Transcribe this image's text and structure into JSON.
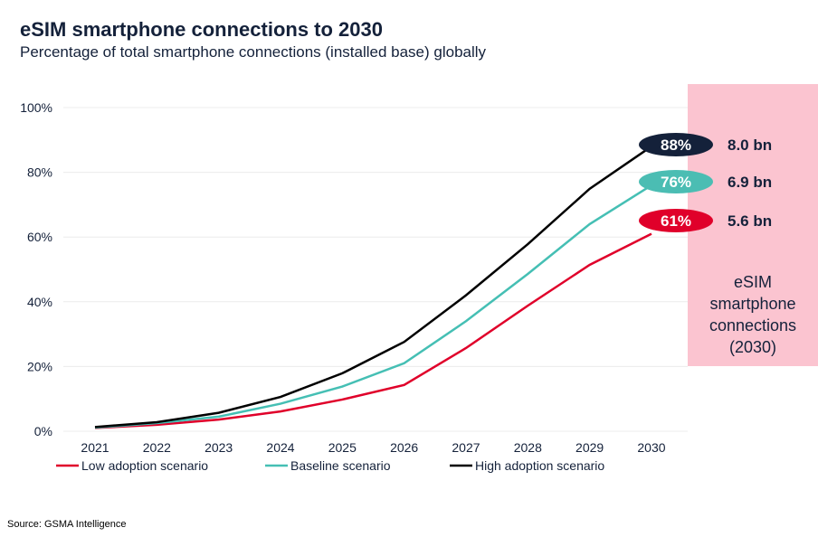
{
  "chart_data": {
    "type": "line",
    "title": "eSIM smartphone connections to 2030",
    "subtitle": "Percentage of total smartphone connections (installed base) globally",
    "x": [
      "2021",
      "2022",
      "2023",
      "2024",
      "2025",
      "2026",
      "2027",
      "2028",
      "2029",
      "2030"
    ],
    "yticks": [
      "0%",
      "20%",
      "40%",
      "60%",
      "80%",
      "100%"
    ],
    "ylim": [
      0,
      100
    ],
    "grid": true,
    "legend_position": "bottom",
    "series": [
      {
        "name": "Low adoption scenario",
        "color": "#e0002a",
        "values": [
          1,
          2,
          3.6,
          6.1,
          9.8,
          14.3,
          25.7,
          38.8,
          51.4,
          61
        ],
        "end_label": "61%",
        "connections": "5.6 bn"
      },
      {
        "name": "Baseline scenario",
        "color": "#45bfb4",
        "values": [
          1.1,
          2.5,
          4.5,
          8.5,
          13.8,
          21,
          34,
          48.6,
          64,
          76
        ],
        "end_label": "76%",
        "connections": "6.9 bn"
      },
      {
        "name": "High adoption scenario",
        "color": "#000000",
        "values": [
          1.3,
          2.8,
          5.7,
          10.6,
          17.9,
          27.6,
          42,
          57.8,
          74.9,
          88
        ],
        "end_label": "88%",
        "connections": "8.0 bn"
      }
    ],
    "label_colors": [
      "#e0002a",
      "#4bbdb3",
      "#14213a"
    ],
    "panel_text": [
      "eSIM",
      "smartphone",
      "connections",
      "(2030)"
    ],
    "panel_color": "#fbc4d0"
  },
  "source": "Source: GSMA Intelligence"
}
